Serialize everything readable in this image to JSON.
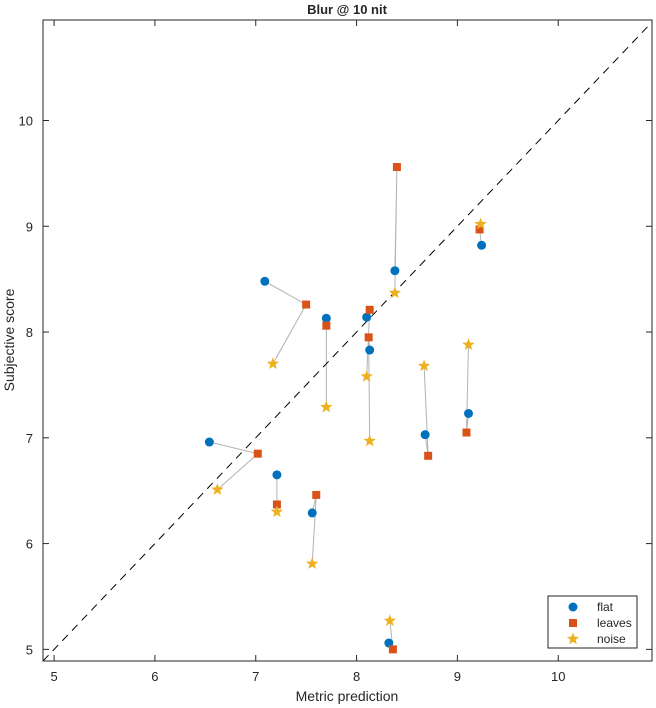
{
  "chart_data": {
    "type": "scatter",
    "title": "Blur @ 10 nit",
    "xlabel": "Metric prediction",
    "ylabel": "Subjective score",
    "xlim": [
      4.89,
      10.93
    ],
    "ylim": [
      4.89,
      10.95
    ],
    "xticks": [
      5,
      6,
      7,
      8,
      9,
      10
    ],
    "yticks": [
      5,
      6,
      7,
      8,
      9,
      10
    ],
    "grid": false,
    "legend_position": "bottom-right",
    "reference_line": "y = x (dashed)",
    "series": [
      {
        "name": "flat",
        "marker": "circle",
        "color": "#0072BD",
        "points": [
          [
            7.09,
            8.48
          ],
          [
            7.7,
            8.13
          ],
          [
            8.1,
            8.14
          ],
          [
            8.13,
            7.83
          ],
          [
            8.38,
            8.58
          ],
          [
            9.24,
            8.82
          ],
          [
            6.54,
            6.96
          ],
          [
            7.21,
            6.65
          ],
          [
            7.56,
            6.29
          ],
          [
            8.68,
            7.03
          ],
          [
            9.11,
            7.23
          ],
          [
            8.32,
            5.06
          ]
        ]
      },
      {
        "name": "leaves",
        "marker": "square",
        "color": "#D95319",
        "points": [
          [
            7.5,
            8.26
          ],
          [
            7.7,
            8.06
          ],
          [
            8.13,
            8.21
          ],
          [
            8.12,
            7.95
          ],
          [
            8.4,
            9.56
          ],
          [
            9.22,
            8.97
          ],
          [
            7.02,
            6.85
          ],
          [
            7.21,
            6.37
          ],
          [
            7.6,
            6.46
          ],
          [
            8.71,
            6.83
          ],
          [
            9.09,
            7.05
          ],
          [
            8.36,
            5.0
          ]
        ]
      },
      {
        "name": "noise",
        "marker": "star",
        "color": "#EDB120",
        "points": [
          [
            7.17,
            7.7
          ],
          [
            7.7,
            7.29
          ],
          [
            8.1,
            7.58
          ],
          [
            8.13,
            6.97
          ],
          [
            8.38,
            8.37
          ],
          [
            9.23,
            9.02
          ],
          [
            6.62,
            6.51
          ],
          [
            7.21,
            6.3
          ],
          [
            7.56,
            5.81
          ],
          [
            8.67,
            7.68
          ],
          [
            9.11,
            7.88
          ],
          [
            8.33,
            5.27
          ]
        ]
      }
    ]
  }
}
